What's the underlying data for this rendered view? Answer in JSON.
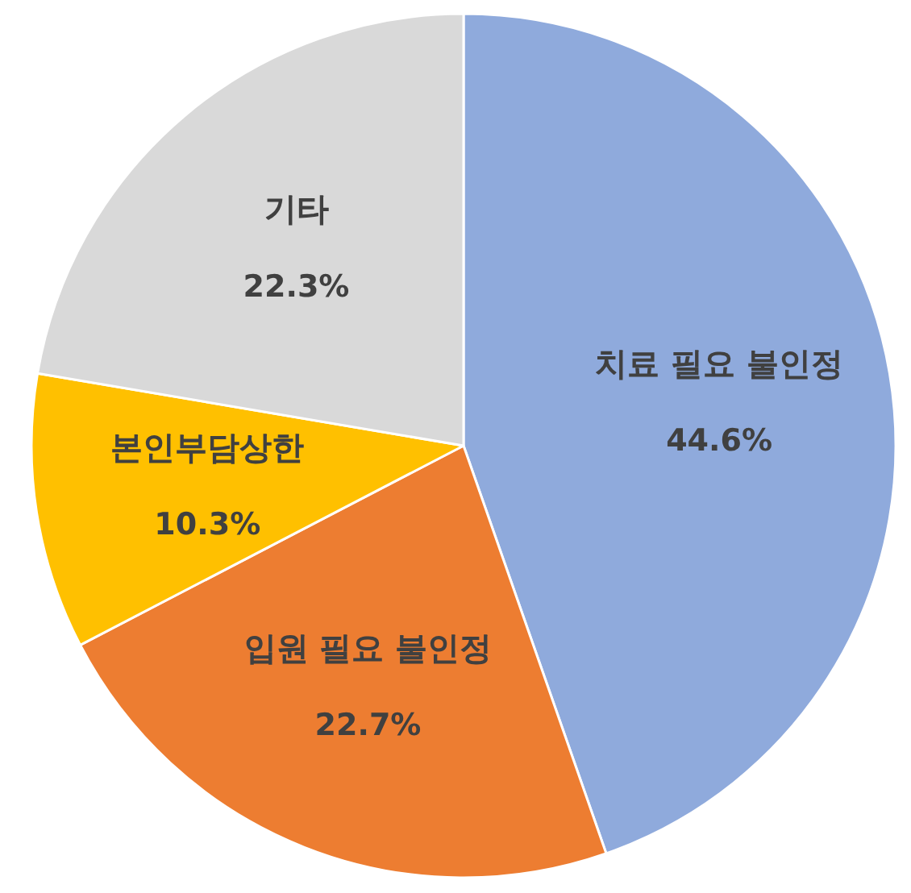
{
  "chart_data": {
    "type": "pie",
    "categories": [
      "치료 필요 불인정",
      "입원 필요 불인정",
      "본인부담상한",
      "기타"
    ],
    "values": [
      44.6,
      22.7,
      10.3,
      22.3
    ],
    "value_labels": [
      "44.6%",
      "22.7%",
      "10.3%",
      "22.3%"
    ],
    "colors": [
      "#8faadc",
      "#ed7d31",
      "#ffc000",
      "#d9d9d9"
    ],
    "legend": false
  }
}
